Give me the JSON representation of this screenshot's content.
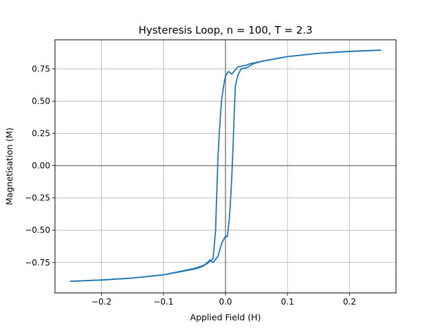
{
  "chart_data": {
    "type": "line",
    "title": "Hysteresis Loop, n = 100, T = 2.3",
    "xlabel": "Applied Field (H)",
    "ylabel": "Magnetisation (M)",
    "xlim": [
      -0.275,
      0.275
    ],
    "ylim": [
      -0.985,
      0.975
    ],
    "grid": true,
    "x_ticks": [
      -0.2,
      -0.1,
      0.0,
      0.1,
      0.2
    ],
    "x_tick_labels": [
      "−0.2",
      "−0.1",
      "0.0",
      "0.1",
      "0.2"
    ],
    "y_ticks": [
      -0.75,
      -0.5,
      -0.25,
      0.0,
      0.25,
      0.5,
      0.75
    ],
    "y_tick_labels": [
      "−0.75",
      "−0.50",
      "−0.25",
      "0.00",
      "0.25",
      "0.50",
      "0.75"
    ],
    "reference_lines": {
      "x": 0,
      "y": 0,
      "color": "#808080"
    },
    "series": [
      {
        "color": "#1f77b4",
        "points": [
          [
            0.25,
            0.895
          ],
          [
            0.2,
            0.885
          ],
          [
            0.15,
            0.87
          ],
          [
            0.1,
            0.845
          ],
          [
            0.06,
            0.81
          ],
          [
            0.045,
            0.795
          ],
          [
            0.04,
            0.79
          ],
          [
            0.035,
            0.78
          ],
          [
            0.03,
            0.775
          ],
          [
            0.02,
            0.765
          ],
          [
            0.01,
            0.71
          ],
          [
            0.005,
            0.73
          ],
          [
            0.0,
            0.695
          ],
          [
            -0.003,
            0.62
          ],
          [
            -0.006,
            0.52
          ],
          [
            -0.008,
            0.4
          ],
          [
            -0.01,
            0.25
          ],
          [
            -0.012,
            0.08
          ],
          [
            -0.014,
            -0.2
          ],
          [
            -0.016,
            -0.5
          ],
          [
            -0.02,
            -0.72
          ],
          [
            -0.03,
            -0.76
          ],
          [
            -0.04,
            -0.78
          ],
          [
            -0.05,
            -0.795
          ],
          [
            -0.1,
            -0.845
          ],
          [
            -0.15,
            -0.87
          ],
          [
            -0.2,
            -0.885
          ],
          [
            -0.25,
            -0.895
          ]
        ]
      },
      {
        "color": "#1f77b4",
        "points": [
          [
            -0.25,
            -0.895
          ],
          [
            -0.2,
            -0.885
          ],
          [
            -0.15,
            -0.87
          ],
          [
            -0.1,
            -0.845
          ],
          [
            -0.06,
            -0.81
          ],
          [
            -0.045,
            -0.795
          ],
          [
            -0.035,
            -0.775
          ],
          [
            -0.025,
            -0.73
          ],
          [
            -0.02,
            -0.75
          ],
          [
            -0.012,
            -0.7
          ],
          [
            -0.006,
            -0.6
          ],
          [
            0.0,
            -0.545
          ],
          [
            0.003,
            -0.55
          ],
          [
            0.006,
            -0.42
          ],
          [
            0.008,
            -0.28
          ],
          [
            0.01,
            -0.1
          ],
          [
            0.012,
            0.12
          ],
          [
            0.014,
            0.4
          ],
          [
            0.016,
            0.62
          ],
          [
            0.02,
            0.7
          ],
          [
            0.025,
            0.75
          ],
          [
            0.035,
            0.76
          ],
          [
            0.045,
            0.79
          ],
          [
            0.06,
            0.81
          ],
          [
            0.1,
            0.845
          ],
          [
            0.15,
            0.87
          ],
          [
            0.2,
            0.885
          ],
          [
            0.25,
            0.895
          ]
        ]
      }
    ]
  }
}
